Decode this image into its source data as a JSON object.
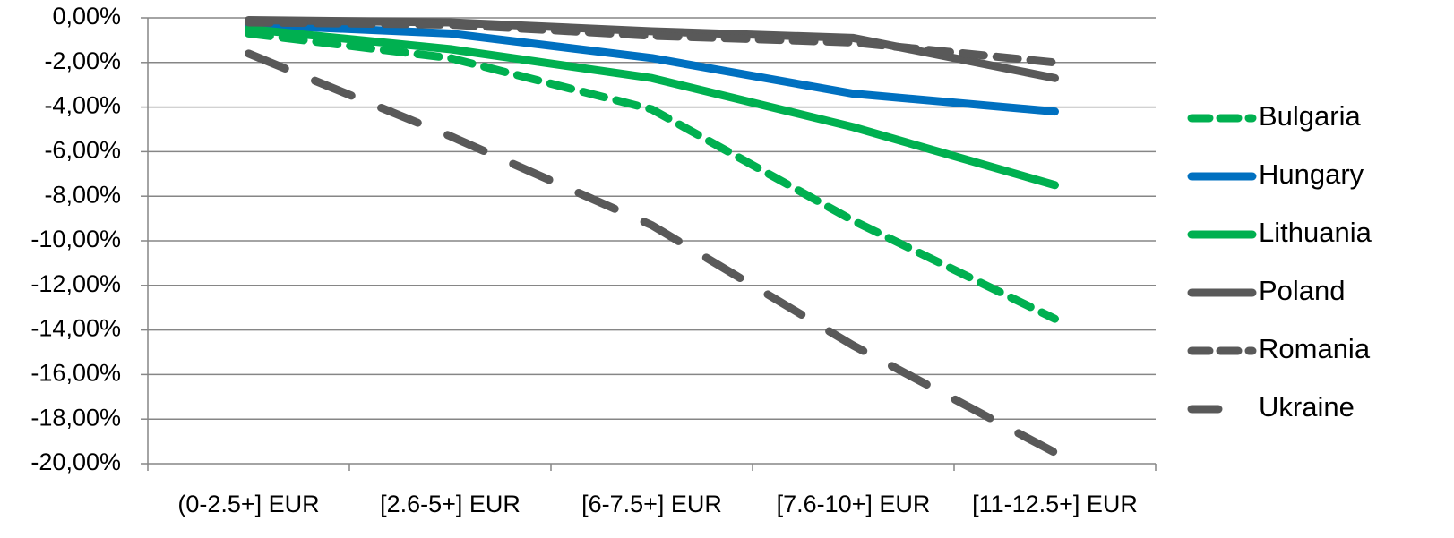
{
  "chart_data": {
    "type": "line",
    "title": "",
    "xlabel": "",
    "ylabel": "",
    "categories": [
      "(0-2.5+] EUR",
      "[2.6-5+] EUR",
      "[6-7.5+] EUR",
      "[7.6-10+] EUR",
      "[11-12.5+] EUR"
    ],
    "ylim": [
      -20,
      0
    ],
    "yticks": [
      0,
      -2,
      -4,
      -6,
      -8,
      -10,
      -12,
      -14,
      -16,
      -18,
      -20
    ],
    "ytick_labels": [
      "0,00%",
      "-2,00%",
      "-4,00%",
      "-6,00%",
      "-8,00%",
      "-10,00%",
      "-12,00%",
      "-14,00%",
      "-16,00%",
      "-18,00%",
      "-20,00%"
    ],
    "grid": true,
    "legend_position": "right",
    "series": [
      {
        "name": "Bulgaria",
        "color": "#00b050",
        "style": "dashed",
        "values": [
          -0.7,
          -1.8,
          -4.1,
          -9.1,
          -13.5
        ]
      },
      {
        "name": "Hungary",
        "color": "#0070c0",
        "style": "solid",
        "values": [
          -0.3,
          -0.7,
          -1.8,
          -3.4,
          -4.2
        ]
      },
      {
        "name": "Lithuania",
        "color": "#00b050",
        "style": "solid",
        "values": [
          -0.5,
          -1.4,
          -2.7,
          -4.9,
          -7.5
        ]
      },
      {
        "name": "Poland",
        "color": "#595959",
        "style": "solid",
        "values": [
          -0.1,
          -0.2,
          -0.6,
          -0.9,
          -2.7
        ]
      },
      {
        "name": "Romania",
        "color": "#595959",
        "style": "dashed",
        "values": [
          -0.2,
          -0.3,
          -0.8,
          -1.1,
          -2.0
        ]
      },
      {
        "name": "Ukraine",
        "color": "#595959",
        "style": "longdash",
        "values": [
          -1.6,
          -5.3,
          -9.3,
          -14.7,
          -19.5
        ]
      }
    ]
  }
}
